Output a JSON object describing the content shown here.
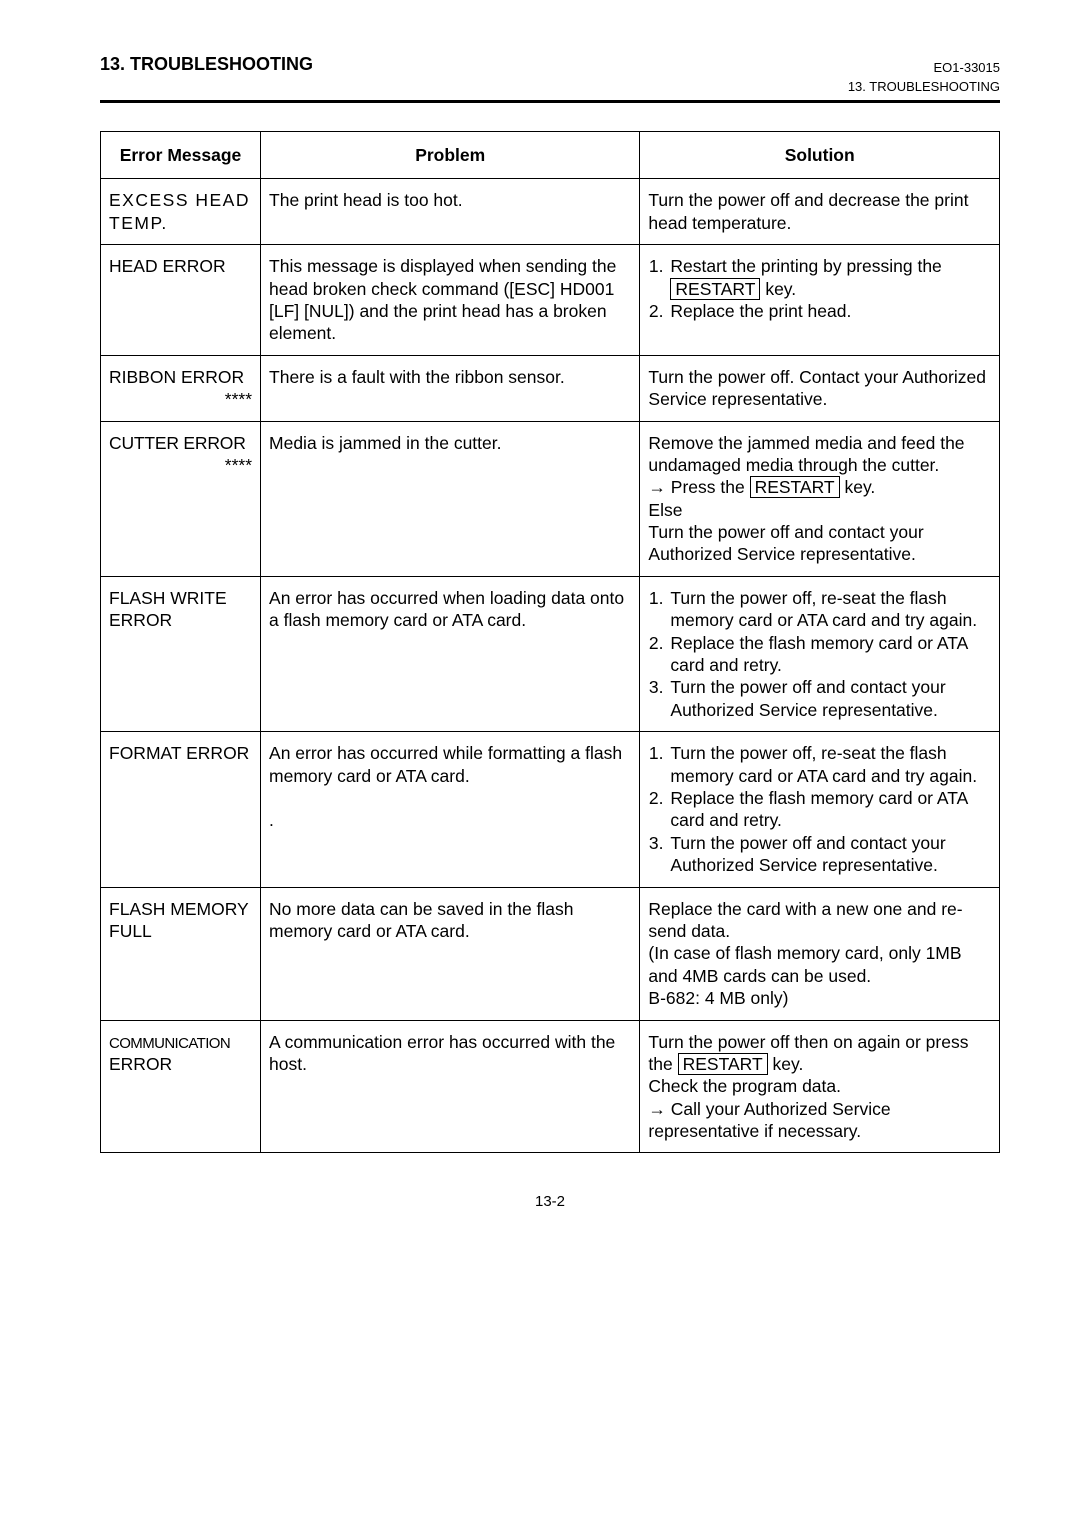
{
  "header": {
    "section_title": "13. TROUBLESHOOTING",
    "doc_id": "EO1-33015",
    "sub_header": "13. TROUBLESHOOTING"
  },
  "table": {
    "columns": [
      "Error Message",
      "Problem",
      "Solution"
    ],
    "col_widths_pct": [
      17.8,
      42.2,
      40.0
    ],
    "border_color": "#000000",
    "font_size_pt": 13,
    "rows": [
      {
        "error": "EXCESS HEAD TEMP.",
        "problem": "The print head is too hot.",
        "solution_pre": "Turn the power off and decrease the print head temperature."
      },
      {
        "error": "HEAD ERROR",
        "problem": "This message is displayed when sending the head broken check command ([ESC] HD001 [LF] [NUL]) and the print head has a broken element.",
        "solution_ol": [
          {
            "pre": "Restart the printing by pressing the ",
            "key": "RESTART",
            "post": " key."
          },
          {
            "pre": "Replace the print head."
          }
        ]
      },
      {
        "error": "RIBBON ERROR",
        "error_suffix": "****",
        "problem": "There is a fault with the ribbon sensor.",
        "solution_pre": "Turn the power off.  Contact your Authorized Service representative."
      },
      {
        "error": "CUTTER ERROR",
        "error_suffix": "****",
        "problem": "Media is jammed in the cutter.",
        "solution_lines": [
          "Remove the jammed media and feed the undamaged media through the cutter.",
          {
            "arrow": true,
            "pre": "Press the ",
            "key": "RESTART",
            "post": " key."
          },
          "Else",
          "Turn the power off and contact your Authorized Service representative."
        ]
      },
      {
        "error": "FLASH WRITE ERROR",
        "problem": "An error has occurred when loading data onto a flash memory card or ATA card.",
        "solution_ol": [
          {
            "pre": "Turn the power off, re-seat the flash memory card or ATA card and try again."
          },
          {
            "pre": "Replace the flash memory card or ATA card and retry."
          },
          {
            "pre": "Turn the power off and contact your Authorized Service representative."
          }
        ]
      },
      {
        "error": "FORMAT ERROR",
        "problem": "An error has occurred while formatting a flash memory card or ATA card.",
        "problem_trailing_dot": ".",
        "solution_ol": [
          {
            "pre": "Turn the power off, re-seat the flash memory card or ATA card and try again."
          },
          {
            "pre": "Replace the flash memory card or ATA card and retry."
          },
          {
            "pre": "Turn the power off and contact your Authorized Service representative."
          }
        ]
      },
      {
        "error": "FLASH MEMORY FULL",
        "problem": "No more data can be saved in the flash memory card or ATA card.",
        "solution_lines": [
          "Replace the card with a new one and re-send data.",
          "(In case of flash memory card, only 1MB and 4MB cards can be used.",
          "B-682: 4 MB only)"
        ]
      },
      {
        "error_condensed": "COMMUNICATION",
        "error_rest": "ERROR",
        "problem": "A communication error has occurred with the host.",
        "solution_mixed": {
          "line1_pre": "Turn the power off then on again or press the ",
          "line1_key": "RESTART",
          "line1_post": " key.",
          "line2": "Check the program data.",
          "arrow_line": "Call your Authorized Service representative if necessary."
        }
      }
    ]
  },
  "footer": {
    "page_num": "13-2"
  },
  "style": {
    "background": "#ffffff",
    "text_color": "#000000",
    "rule_color": "#000000",
    "key_border": "#000000"
  }
}
